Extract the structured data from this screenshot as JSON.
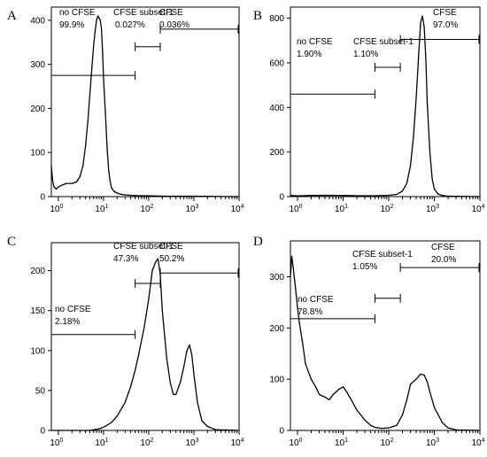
{
  "chart_data": [
    {
      "type": "line",
      "panel_label": "A",
      "x_scale": "log",
      "xlim": [
        0.7,
        10000
      ],
      "ylim": [
        0,
        430
      ],
      "x_ticks": [
        1,
        10,
        100,
        1000,
        10000
      ],
      "y_ticks": [
        0,
        100,
        200,
        300,
        400
      ],
      "series": [
        {
          "x": [
            0.7,
            0.75,
            0.8,
            0.9,
            1.0,
            1.2,
            1.5,
            2.0,
            2.5,
            3.0,
            3.5,
            4.0,
            4.5,
            5.0,
            5.5,
            6.0,
            6.5,
            7.0,
            7.5,
            8.0,
            8.5,
            9.0,
            9.5,
            10,
            11,
            12,
            13,
            14,
            15,
            17,
            20,
            25,
            30,
            40,
            60,
            100,
            200,
            500,
            1000,
            10000
          ],
          "y": [
            70,
            35,
            22,
            17,
            22,
            26,
            30,
            30,
            33,
            45,
            70,
            115,
            170,
            235,
            290,
            340,
            375,
            400,
            410,
            405,
            400,
            380,
            330,
            270,
            190,
            110,
            60,
            35,
            20,
            12,
            8,
            5,
            4,
            3,
            2,
            2,
            1,
            1,
            1,
            0
          ]
        }
      ],
      "gates": [
        {
          "label": "no CFSE",
          "percent": "99.9%",
          "x_range": [
            0.7,
            50
          ],
          "y": 275
        },
        {
          "label": "CFSE subset-1",
          "percent": "0.027%",
          "x_range": [
            50,
            180
          ],
          "y": 340
        },
        {
          "label": "CFSE",
          "percent": "0.036%",
          "x_range": [
            180,
            10000
          ],
          "y": 380
        }
      ]
    },
    {
      "type": "line",
      "panel_label": "B",
      "x_scale": "log",
      "xlim": [
        0.7,
        10000
      ],
      "ylim": [
        0,
        850
      ],
      "x_ticks": [
        1,
        10,
        100,
        1000,
        10000
      ],
      "y_ticks": [
        0,
        200,
        400,
        600,
        800
      ],
      "series": [
        {
          "x": [
            0.7,
            1,
            2,
            5,
            10,
            20,
            50,
            100,
            150,
            200,
            250,
            300,
            350,
            400,
            450,
            500,
            550,
            600,
            650,
            700,
            800,
            900,
            1000,
            1200,
            1500,
            2000,
            3000,
            10000
          ],
          "y": [
            5,
            3,
            5,
            6,
            5,
            4,
            4,
            6,
            10,
            25,
            60,
            140,
            270,
            440,
            620,
            780,
            810,
            760,
            620,
            420,
            200,
            80,
            35,
            12,
            5,
            2,
            1,
            0
          ]
        }
      ],
      "gates": [
        {
          "label": "no CFSE",
          "percent": "1.90%",
          "x_range": [
            0.7,
            50
          ],
          "y": 460
        },
        {
          "label": "CFSE subset-1",
          "percent": "1.10%",
          "x_range": [
            50,
            180
          ],
          "y": 580
        },
        {
          "label": "CFSE",
          "percent": "97.0%",
          "x_range": [
            180,
            10000
          ],
          "y": 705
        }
      ]
    },
    {
      "type": "line",
      "panel_label": "C",
      "x_scale": "log",
      "xlim": [
        0.7,
        10000
      ],
      "ylim": [
        0,
        235
      ],
      "x_ticks": [
        1,
        10,
        100,
        1000,
        10000
      ],
      "y_ticks": [
        0,
        50,
        100,
        150,
        200
      ],
      "series": [
        {
          "x": [
            0.7,
            1,
            2,
            5,
            8,
            10,
            15,
            20,
            30,
            40,
            50,
            60,
            80,
            100,
            120,
            140,
            160,
            180,
            200,
            250,
            300,
            350,
            400,
            500,
            600,
            700,
            800,
            900,
            1000,
            1200,
            1500,
            2000,
            3000,
            10000
          ],
          "y": [
            0,
            0,
            0,
            0,
            2,
            4,
            10,
            18,
            35,
            55,
            75,
            95,
            130,
            165,
            200,
            210,
            215,
            195,
            150,
            90,
            60,
            45,
            45,
            60,
            80,
            100,
            107,
            95,
            70,
            35,
            12,
            5,
            1,
            0
          ]
        }
      ],
      "gates": [
        {
          "label": "no CFSE",
          "percent": "2.18%",
          "x_range": [
            0.7,
            50
          ],
          "y": 120
        },
        {
          "label": "CFSE subset-1",
          "percent": "47.3%",
          "x_range": [
            50,
            180
          ],
          "y": 184
        },
        {
          "label": "CFSE",
          "percent": "50.2%",
          "x_range": [
            180,
            10000
          ],
          "y": 197
        }
      ]
    },
    {
      "type": "line",
      "panel_label": "D",
      "x_scale": "log",
      "xlim": [
        0.7,
        10000
      ],
      "ylim": [
        0,
        370
      ],
      "x_ticks": [
        1,
        10,
        100,
        1000,
        10000
      ],
      "y_ticks": [
        0,
        100,
        200,
        300
      ],
      "series": [
        {
          "x": [
            0.7,
            0.75,
            0.8,
            0.85,
            0.9,
            1.0,
            1.1,
            1.3,
            1.5,
            2.0,
            2.5,
            3.0,
            4.0,
            5.0,
            6.0,
            7.0,
            8.0,
            10,
            12,
            15,
            20,
            30,
            40,
            50,
            70,
            100,
            150,
            200,
            250,
            300,
            400,
            500,
            600,
            700,
            800,
            1000,
            1500,
            2000,
            3000,
            10000
          ],
          "y": [
            300,
            340,
            320,
            300,
            280,
            240,
            210,
            170,
            130,
            100,
            85,
            70,
            65,
            60,
            70,
            75,
            80,
            85,
            75,
            60,
            40,
            20,
            10,
            6,
            4,
            5,
            10,
            30,
            60,
            90,
            100,
            110,
            108,
            95,
            75,
            45,
            15,
            5,
            1,
            0
          ]
        }
      ],
      "gates": [
        {
          "label": "no CFSE",
          "percent": "78.8%",
          "x_range": [
            0.7,
            50
          ],
          "y": 218
        },
        {
          "label": "CFSE subset-1",
          "percent": "1.05%",
          "x_range": [
            50,
            180
          ],
          "y": 258
        },
        {
          "label": "CFSE",
          "percent": "20.0%",
          "x_range": [
            180,
            10000
          ],
          "y": 318
        }
      ]
    }
  ]
}
